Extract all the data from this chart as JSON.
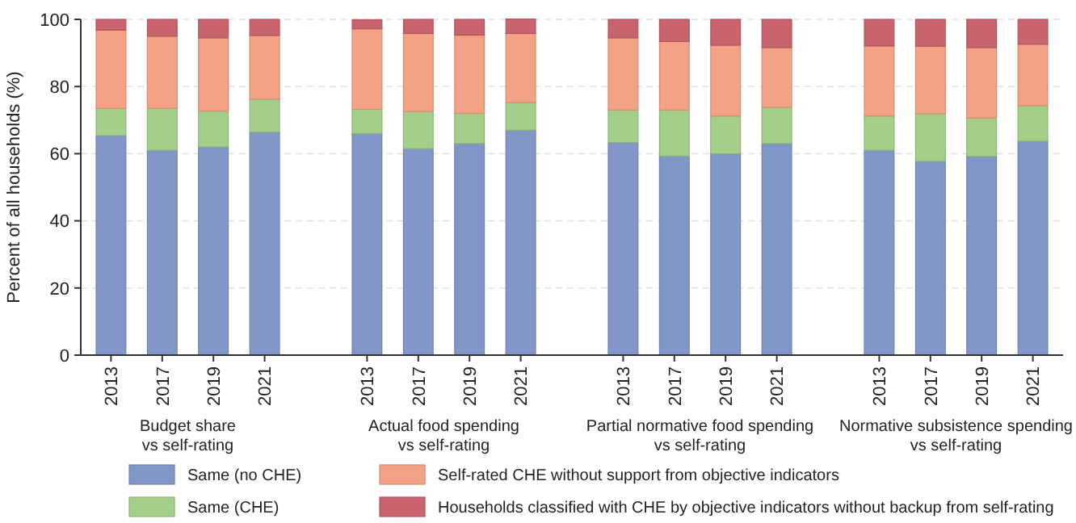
{
  "chart_data": {
    "type": "bar",
    "stacked": true,
    "ylabel": "Percent of all households (%)",
    "categories": [
      "2013",
      "2017",
      "2019",
      "2021",
      null,
      "2013",
      "2017",
      "2019",
      "2021",
      null,
      "2013",
      "2017",
      "2019",
      "2021",
      null,
      "2013",
      "2017",
      "2019",
      "2021"
    ],
    "series": [
      {
        "name": "Same (no CHE)",
        "color": "#8297c7",
        "values": [
          65.4,
          61,
          62,
          66.4,
          null,
          66,
          61.5,
          63,
          67,
          null,
          63.3,
          59.3,
          60,
          63,
          null,
          61,
          57.7,
          59.2,
          63.7
        ]
      },
      {
        "name": "Same (CHE)",
        "color": "#a3cf8a",
        "values": [
          8.1,
          12.5,
          10.7,
          9.8,
          null,
          7.2,
          11,
          9,
          8.2,
          null,
          9.7,
          13.7,
          11.2,
          10.8,
          null,
          10.2,
          14.2,
          11.4,
          10.6
        ]
      },
      {
        "name": "Self-rated CHE without support from objective indicators",
        "color": "#f4a285",
        "values": [
          23.3,
          21.5,
          21.8,
          19,
          null,
          24,
          23.3,
          23.3,
          20.6,
          null,
          21.5,
          20.4,
          21.1,
          17.8,
          null,
          20.9,
          20.1,
          21,
          18.3
        ]
      },
      {
        "name": "Households classified with CHE by objective indicators without backup from self-rating",
        "color": "#c9636d",
        "values": [
          3.2,
          5,
          5.5,
          4.8,
          null,
          2.7,
          4.2,
          4.7,
          4.3,
          null,
          5.5,
          6.6,
          7.7,
          8.4,
          null,
          7.9,
          8,
          8.4,
          7.4
        ]
      }
    ],
    "annotations": [
      "Budget share\nvs self-rating",
      "Actual food spending\nvs self-rating",
      "Partial normative food spending\nvs self-rating",
      "Normative subsistence spending\nvs self-rating"
    ],
    "ylim": [
      0,
      100
    ],
    "yticks": [
      0,
      20,
      40,
      60,
      80,
      100
    ],
    "grid": "y",
    "legend": "bottom"
  }
}
